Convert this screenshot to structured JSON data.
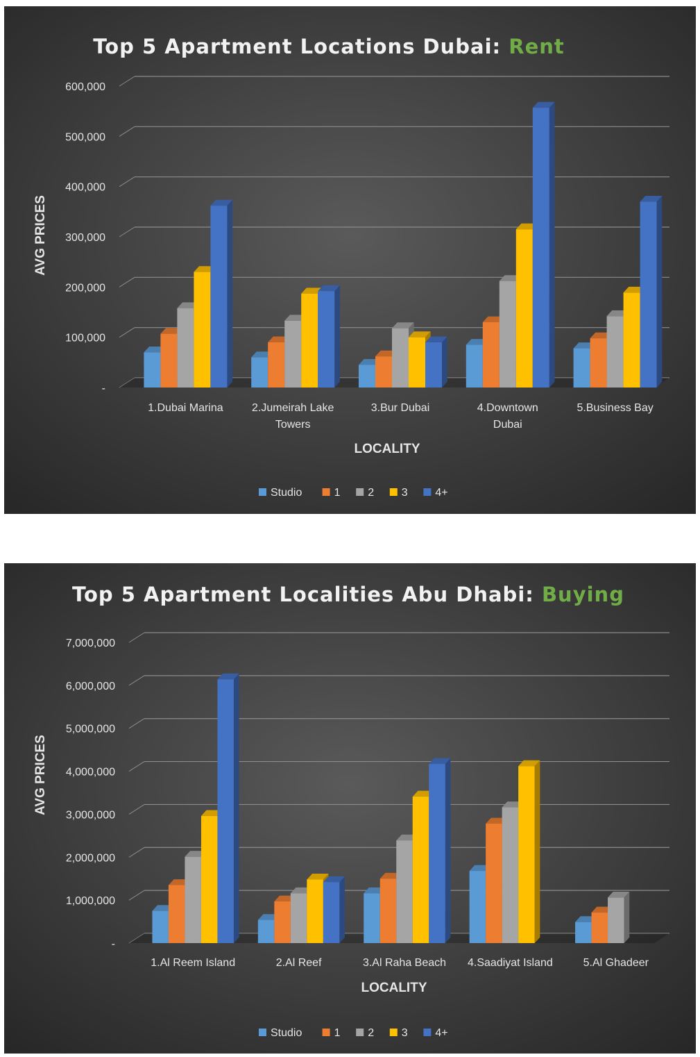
{
  "colors": {
    "background_inner": "#5a5a5a",
    "background_outer": "#262626",
    "title": "#f2f2f2",
    "title_accent": "#70ad47",
    "gridline": "#8c8c8c",
    "series": [
      "#5b9bd5",
      "#ed7d31",
      "#a5a5a5",
      "#ffc000",
      "#4472c4"
    ]
  },
  "chart_data": [
    {
      "type": "bar",
      "title": "Top 5 Apartment Locations Dubai:",
      "title_accent": "Rent",
      "xlabel": "LOCALITY",
      "ylabel": "AVG PRICES",
      "ylim": [
        0,
        600000
      ],
      "yticks": [
        0,
        100000,
        200000,
        300000,
        400000,
        500000,
        600000
      ],
      "ytick_labels": [
        "-",
        "100,000",
        "200,000",
        "300,000",
        "400,000",
        "500,000",
        "600,000"
      ],
      "grid": true,
      "legend_position": "bottom",
      "categories": [
        "1.Dubai Marina",
        "2.Jumeirah Lake Towers",
        "3.Bur Dubai",
        "4.Downtown Dubai",
        "5.Business Bay"
      ],
      "category_lines": [
        [
          "1.Dubai Marina"
        ],
        [
          "2.Jumeirah Lake",
          "Towers"
        ],
        [
          "3.Bur Dubai"
        ],
        [
          "4.Downtown",
          "Dubai"
        ],
        [
          "5.Business Bay"
        ]
      ],
      "series": [
        {
          "name": "Studio",
          "values": [
            70000,
            60000,
            45000,
            85000,
            78000
          ]
        },
        {
          "name": "1",
          "values": [
            107000,
            90000,
            62000,
            130000,
            98000
          ]
        },
        {
          "name": "2",
          "values": [
            158000,
            133000,
            118000,
            212000,
            142000
          ]
        },
        {
          "name": "3",
          "values": [
            230000,
            187000,
            100000,
            315000,
            189000
          ]
        },
        {
          "name": "4+",
          "values": [
            362000,
            192000,
            90000,
            557000,
            370000
          ]
        }
      ]
    },
    {
      "type": "bar",
      "title": "Top 5 Apartment Localities Abu Dhabi:",
      "title_accent": "Buying",
      "xlabel": "LOCALITY",
      "ylabel": "AVG PRICES",
      "ylim": [
        0,
        7000000
      ],
      "yticks": [
        0,
        1000000,
        2000000,
        3000000,
        4000000,
        5000000,
        6000000,
        7000000
      ],
      "ytick_labels": [
        "-",
        "1,000,000",
        "2,000,000",
        "3,000,000",
        "4,000,000",
        "5,000,000",
        "6,000,000",
        "7,000,000"
      ],
      "grid": true,
      "legend_position": "bottom",
      "categories": [
        "1.Al Reem Island",
        "2.Al Reef",
        "3.Al Raha Beach",
        "4.Saadiyat Island",
        "5.Al Ghadeer"
      ],
      "category_lines": [
        [
          "1.Al Reem Island"
        ],
        [
          "2.Al Reef"
        ],
        [
          "3.Al Raha Beach"
        ],
        [
          "4.Saadiyat Island"
        ],
        [
          "5.Al Ghadeer"
        ]
      ],
      "series": [
        {
          "name": "Studio",
          "values": [
            750000,
            540000,
            1160000,
            1680000,
            490000
          ]
        },
        {
          "name": "1",
          "values": [
            1350000,
            970000,
            1500000,
            2780000,
            710000
          ]
        },
        {
          "name": "2",
          "values": [
            2010000,
            1160000,
            2390000,
            3160000,
            1060000
          ]
        },
        {
          "name": "3",
          "values": [
            2960000,
            1480000,
            3410000,
            4120000,
            null
          ]
        },
        {
          "name": "4+",
          "values": [
            6140000,
            1420000,
            4170000,
            null,
            null
          ]
        }
      ]
    }
  ]
}
